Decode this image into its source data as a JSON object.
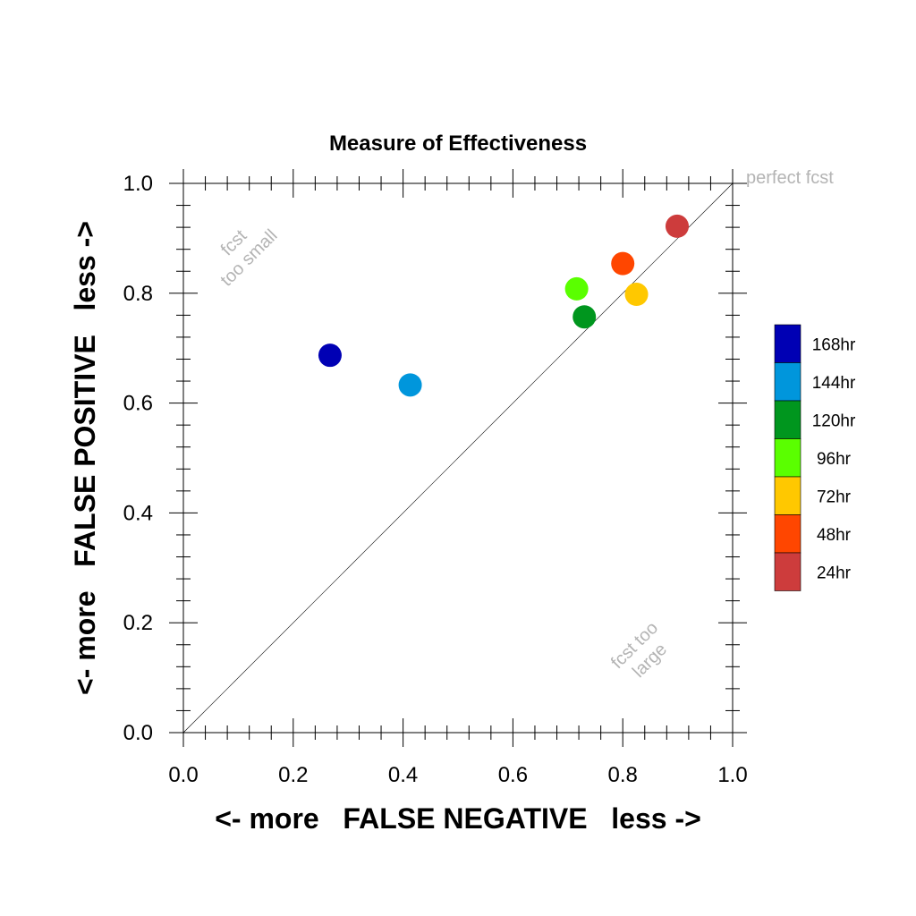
{
  "chart_data": {
    "type": "scatter",
    "title": "Measure of Effectiveness",
    "xlabel": "<- more   FALSE NEGATIVE   less ->",
    "ylabel": "<- more   FALSE POSITIVE   less ->",
    "xlim": [
      0.0,
      1.0
    ],
    "ylim": [
      0.0,
      1.0
    ],
    "xticks": [
      "0.0",
      "0.2",
      "0.4",
      "0.6",
      "0.8",
      "1.0"
    ],
    "yticks": [
      "0.0",
      "0.2",
      "0.4",
      "0.6",
      "0.8",
      "1.0"
    ],
    "grid": false,
    "legend_position": "right",
    "reference_line": {
      "from": [
        0,
        0
      ],
      "to": [
        1,
        1
      ]
    },
    "annotations": {
      "perfect": "perfect fcst",
      "small_line1": "fcst",
      "small_line2": "too small",
      "large_line1": "fcst too",
      "large_line2": "large"
    },
    "series": [
      {
        "name": "168hr",
        "color": "#0000b4",
        "x": 0.267,
        "y": 0.687
      },
      {
        "name": "144hr",
        "color": "#0096dc",
        "x": 0.413,
        "y": 0.633
      },
      {
        "name": "120hr",
        "color": "#00961e",
        "x": 0.73,
        "y": 0.757
      },
      {
        "name": "96hr",
        "color": "#5aff00",
        "x": 0.716,
        "y": 0.808
      },
      {
        "name": "72hr",
        "color": "#ffc800",
        "x": 0.825,
        "y": 0.798
      },
      {
        "name": "48hr",
        "color": "#ff4600",
        "x": 0.8,
        "y": 0.854
      },
      {
        "name": "24hr",
        "color": "#cd3c3c",
        "x": 0.899,
        "y": 0.922
      }
    ]
  }
}
